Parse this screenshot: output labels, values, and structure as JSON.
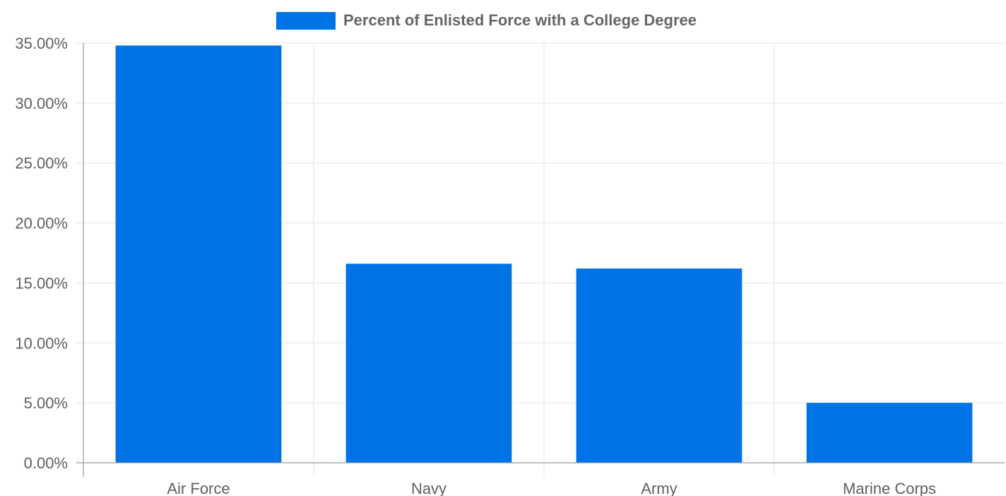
{
  "chart_data": {
    "type": "bar",
    "categories": [
      "Air Force",
      "Navy",
      "Army",
      "Marine Corps"
    ],
    "series": [
      {
        "name": "Percent of Enlisted Force with a College Degree",
        "values": [
          34.8,
          16.6,
          16.2,
          5.0
        ],
        "color": "#0073e6"
      }
    ],
    "y_ticks": [
      "0.00%",
      "5.00%",
      "10.00%",
      "15.00%",
      "20.00%",
      "25.00%",
      "30.00%",
      "35.00%"
    ],
    "ylim": [
      0,
      35
    ],
    "grid": true,
    "legend": "top-center",
    "colors": {
      "grid": "#e5e5e5",
      "axis": "#9a9a9a",
      "tick_text": "#5f5f5f",
      "legend_text": "#666666"
    }
  }
}
